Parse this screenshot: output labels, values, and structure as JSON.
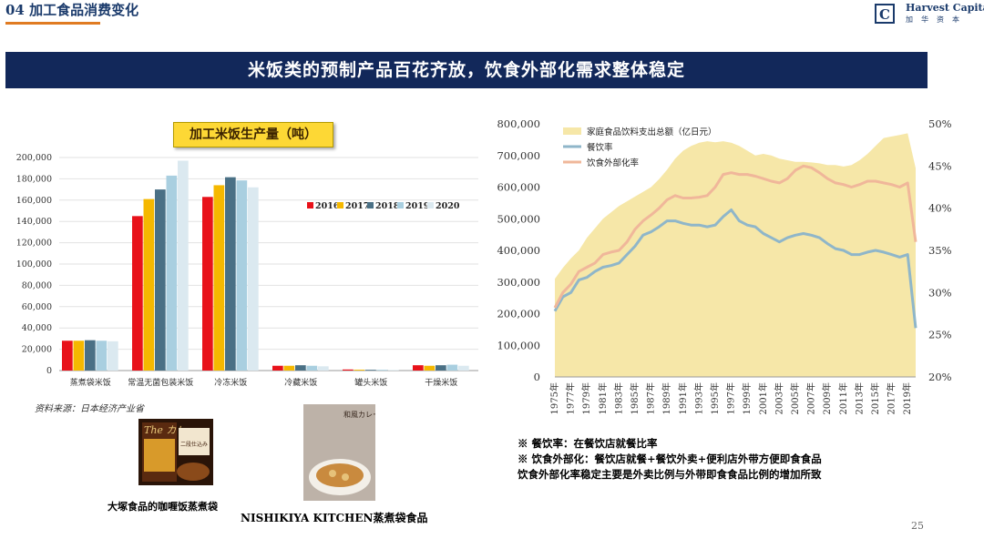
{
  "header": {
    "section_title": "04 加工食品消费变化",
    "company_name": "Harvest Capital",
    "company_cn": "加华资本"
  },
  "banner": {
    "text": "米饭类的预制产品百花齐放，饮食外部化需求整体稳定"
  },
  "chart_data": [
    {
      "type": "bar",
      "title": "加工米饭生产量（吨）",
      "categories": [
        "蒸煮袋米饭",
        "常温无菌包装米饭",
        "冷冻米饭",
        "冷藏米饭",
        "罐头米饭",
        "干燥米饭"
      ],
      "series": [
        {
          "name": "2016",
          "color": "#e8121a",
          "values": [
            28000,
            145000,
            163000,
            4500,
            1000,
            5000
          ]
        },
        {
          "name": "2017",
          "color": "#f5b800",
          "values": [
            28000,
            161000,
            174000,
            4500,
            800,
            4500
          ]
        },
        {
          "name": "2018",
          "color": "#4a7085",
          "values": [
            28500,
            170000,
            181500,
            5000,
            700,
            5000
          ]
        },
        {
          "name": "2019",
          "color": "#a9cfe0",
          "values": [
            28000,
            183000,
            178500,
            4500,
            700,
            5500
          ]
        },
        {
          "name": "2020",
          "color": "#dbe9f0",
          "values": [
            27500,
            197000,
            172000,
            4000,
            600,
            4500
          ]
        }
      ],
      "ylim": [
        0,
        200000
      ],
      "yticks": [
        "200,000",
        "180,000",
        "160,000",
        "140,000",
        "120,000",
        "100,000",
        "80,000",
        "60,000",
        "40,000",
        "20,000",
        "0"
      ],
      "grid": true,
      "legend_position": "right-middle"
    },
    {
      "type": "line",
      "x": [
        1975,
        1976,
        1977,
        1978,
        1979,
        1980,
        1981,
        1982,
        1983,
        1984,
        1985,
        1986,
        1987,
        1988,
        1989,
        1990,
        1991,
        1992,
        1993,
        1994,
        1995,
        1996,
        1997,
        1998,
        1999,
        2000,
        2001,
        2002,
        2003,
        2004,
        2005,
        2006,
        2007,
        2008,
        2009,
        2010,
        2011,
        2012,
        2013,
        2014,
        2015,
        2016,
        2017,
        2018,
        2019,
        2020
      ],
      "xticks": [
        "1975年",
        "1977年",
        "1979年",
        "1981年",
        "1983年",
        "1985年",
        "1987年",
        "1989年",
        "1991年",
        "1993年",
        "1995年",
        "1997年",
        "1999年",
        "2001年",
        "2003年",
        "2005年",
        "2007年",
        "2009年",
        "2011年",
        "2013年",
        "2015年",
        "2017年",
        "2019年"
      ],
      "series": [
        {
          "name": "家庭食品饮料支出总额（亿日元）",
          "kind": "area",
          "axis": "left",
          "color": "#f6e7a8",
          "values": [
            310000,
            345000,
            375000,
            400000,
            440000,
            470000,
            500000,
            520000,
            540000,
            555000,
            570000,
            585000,
            600000,
            625000,
            655000,
            690000,
            715000,
            730000,
            740000,
            745000,
            742000,
            745000,
            740000,
            730000,
            715000,
            700000,
            705000,
            700000,
            690000,
            685000,
            680000,
            680000,
            678000,
            675000,
            670000,
            670000,
            665000,
            670000,
            685000,
            705000,
            730000,
            755000,
            760000,
            765000,
            770000,
            660000
          ]
        },
        {
          "name": "餐饮率",
          "kind": "line",
          "axis": "right",
          "color": "#8fb6c9",
          "values": [
            27.8,
            29.5,
            30.0,
            31.5,
            31.8,
            32.5,
            33.0,
            33.2,
            33.5,
            34.5,
            35.5,
            36.8,
            37.2,
            37.8,
            38.5,
            38.5,
            38.2,
            38.0,
            38.0,
            37.8,
            38.0,
            39.0,
            39.8,
            38.5,
            38.0,
            37.8,
            37.0,
            36.5,
            36.0,
            36.5,
            36.8,
            37.0,
            36.8,
            36.5,
            35.8,
            35.2,
            35.0,
            34.5,
            34.5,
            34.8,
            35.0,
            34.8,
            34.5,
            34.2,
            34.5,
            25.8
          ]
        },
        {
          "name": "饮食外部化率",
          "kind": "line",
          "axis": "right",
          "color": "#f0b79a",
          "values": [
            28.2,
            30.0,
            31.0,
            32.5,
            33.0,
            33.5,
            34.5,
            34.8,
            35.0,
            36.0,
            37.5,
            38.5,
            39.2,
            40.0,
            41.0,
            41.5,
            41.2,
            41.2,
            41.3,
            41.5,
            42.5,
            44.0,
            44.2,
            44.0,
            44.0,
            43.8,
            43.5,
            43.2,
            43.0,
            43.5,
            44.5,
            45.0,
            44.8,
            44.2,
            43.5,
            43.0,
            42.8,
            42.5,
            42.8,
            43.2,
            43.2,
            43.0,
            42.8,
            42.5,
            43.0,
            36.0
          ]
        }
      ],
      "y_left": {
        "lim": [
          0,
          800000
        ],
        "ticks": [
          "800,000",
          "700,000",
          "600,000",
          "500,000",
          "400,000",
          "300,000",
          "200,000",
          "100,000",
          "0"
        ]
      },
      "y_right": {
        "lim": [
          20,
          50
        ],
        "ticks": [
          "50%",
          "45%",
          "40%",
          "35%",
          "30%",
          "25%",
          "20%"
        ]
      },
      "legend_position": "top-left"
    }
  ],
  "source_note": "资料来源：日本经济产业省",
  "product_1": {
    "caption": "大塚食品的咖喱饭蒸煮袋",
    "pack_text": "The カレー",
    "pack_subtext": "二段仕込み"
  },
  "product_2": {
    "caption": "NISHIKIYA KITCHEN蒸煮袋食品",
    "pack_text": "和風カレー じゃが豚"
  },
  "notes": [
    "※ 餐饮率：在餐饮店就餐比率",
    "※ 饮食外部化：餐饮店就餐+餐饮外卖+便利店外带方便即食食品",
    "饮食外部化率稳定主要是外卖比例与外带即食食品比例的增加所致"
  ],
  "page_number": "25",
  "colors": {
    "navy": "#12285a",
    "orange_accent": "#e07b22"
  }
}
